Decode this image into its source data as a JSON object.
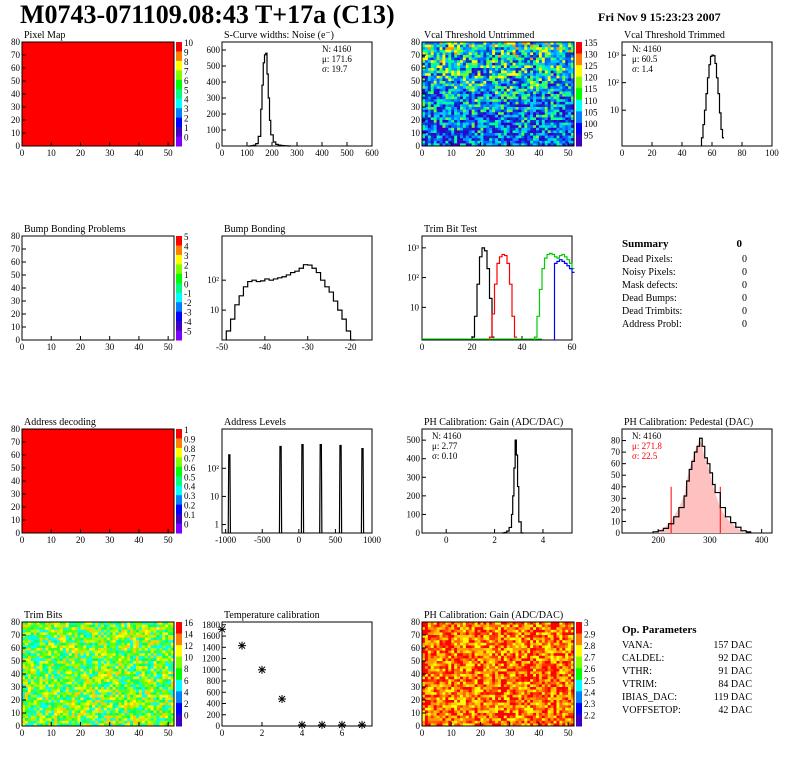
{
  "page": {
    "title": "M0743-071109.08:43 T+17a (C13)",
    "date": "Fri Nov  9 15:23:23 2007"
  },
  "colors": {
    "red_fill": "#ff0000",
    "black": "#000000",
    "green": "#00cc00",
    "blue": "#0000ff",
    "pink": "#ffc0c0"
  },
  "chart_data": [
    {
      "id": "pixel-map",
      "type": "heatmap",
      "title": "Pixel Map",
      "xlim": [
        0,
        52
      ],
      "ylim": [
        0,
        80
      ],
      "xticks": [
        0,
        10,
        20,
        30,
        40,
        50
      ],
      "yticks": [
        0,
        10,
        20,
        30,
        40,
        50,
        60,
        70,
        80
      ],
      "fill": "uniform-max",
      "palette": [
        "10",
        "9",
        "8",
        "7",
        "6",
        "5",
        "4",
        "3",
        "2",
        "1",
        "0"
      ]
    },
    {
      "id": "scurve",
      "type": "line",
      "title": "S-Curve widths: Noise (e⁻)",
      "xlim": [
        0,
        600
      ],
      "ylim": [
        0,
        650
      ],
      "xticks": [
        0,
        100,
        200,
        300,
        400,
        500,
        600
      ],
      "yticks": [
        0,
        100,
        200,
        300,
        400,
        500,
        600
      ],
      "x": [
        105,
        115,
        125,
        135,
        145,
        155,
        160,
        165,
        170,
        175,
        180,
        185,
        190,
        195,
        205,
        215,
        225,
        235,
        245,
        255,
        265
      ],
      "values": [
        0,
        2,
        5,
        15,
        60,
        230,
        380,
        520,
        570,
        580,
        450,
        300,
        160,
        70,
        25,
        10,
        6,
        3,
        2,
        1,
        0
      ],
      "stats": [
        "N: 4160",
        "μ: 171.6",
        "σ: 19.7"
      ]
    },
    {
      "id": "vcal-untrimmed",
      "type": "heatmap",
      "title": "Vcal Threshold Untrimmed",
      "xlim": [
        0,
        52
      ],
      "ylim": [
        0,
        80
      ],
      "xticks": [
        0,
        10,
        20,
        30,
        40,
        50
      ],
      "yticks": [
        0,
        10,
        20,
        30,
        40,
        50,
        60,
        70,
        80
      ],
      "fill": "noisy",
      "palette": [
        "135",
        "130",
        "125",
        "120",
        "115",
        "110",
        "105",
        "100",
        "95"
      ]
    },
    {
      "id": "vcal-trimmed",
      "type": "line",
      "title": "Vcal Threshold Trimmed",
      "scale": "log",
      "xlim": [
        0,
        100
      ],
      "ylim": [
        0.5,
        3000
      ],
      "xticks": [
        0,
        20,
        40,
        60,
        80,
        100
      ],
      "yticks": [
        "10",
        "10²",
        "10³"
      ],
      "x": [
        53,
        54,
        55,
        56,
        57,
        58,
        59,
        60,
        61,
        62,
        63,
        64,
        65,
        66,
        67
      ],
      "values": [
        1,
        3,
        10,
        40,
        150,
        450,
        900,
        1000,
        950,
        500,
        150,
        40,
        8,
        2,
        1
      ],
      "stats": [
        "N: 4160",
        "μ: 60.5",
        "σ: 1.4"
      ]
    },
    {
      "id": "bump-problems",
      "type": "heatmap",
      "title": "Bump Bonding Problems",
      "xlim": [
        0,
        52
      ],
      "ylim": [
        0,
        80
      ],
      "xticks": [
        0,
        10,
        20,
        30,
        40,
        50
      ],
      "yticks": [
        0,
        10,
        20,
        30,
        40,
        50,
        60,
        70,
        80
      ],
      "fill": "empty",
      "palette": [
        "5",
        "4",
        "3",
        "2",
        "1",
        "0",
        "-1",
        "-2",
        "-3",
        "-4",
        "-5"
      ]
    },
    {
      "id": "bump-bonding",
      "type": "line",
      "title": "Bump Bonding",
      "scale": "log",
      "xlim": [
        -50,
        -15
      ],
      "ylim": [
        1,
        3000
      ],
      "xticks": [
        -50,
        -40,
        -30,
        -20
      ],
      "yticks": [
        "10",
        "10²"
      ],
      "x": [
        -49,
        -48,
        -47,
        -46,
        -45,
        -44,
        -43,
        -42,
        -41,
        -40,
        -39,
        -38,
        -37,
        -36,
        -35,
        -34,
        -33,
        -32,
        -31,
        -30,
        -29,
        -28,
        -27,
        -26,
        -25,
        -24,
        -23,
        -22,
        -21,
        -20
      ],
      "values": [
        2,
        5,
        15,
        30,
        60,
        90,
        100,
        90,
        95,
        110,
        100,
        110,
        120,
        130,
        150,
        180,
        200,
        250,
        330,
        320,
        250,
        180,
        100,
        60,
        40,
        20,
        10,
        5,
        2,
        1
      ]
    },
    {
      "id": "trim-bit-test",
      "type": "line",
      "title": "Trim Bit Test",
      "scale": "log",
      "xlim": [
        0,
        60
      ],
      "ylim": [
        0.8,
        2500
      ],
      "xticks": [
        0,
        20,
        40,
        60
      ],
      "yticks": [
        "10",
        "10²",
        "10³"
      ],
      "series": [
        {
          "color": "#000000",
          "x": [
            20,
            21,
            22,
            23,
            24,
            25,
            26,
            27,
            28
          ],
          "values": [
            1,
            5,
            60,
            500,
            1000,
            800,
            200,
            20,
            1
          ]
        },
        {
          "color": "#ff0000",
          "x": [
            27,
            28,
            29,
            30,
            31,
            32,
            33,
            34,
            35,
            36,
            37
          ],
          "values": [
            1,
            6,
            60,
            300,
            500,
            600,
            550,
            300,
            60,
            5,
            1
          ]
        },
        {
          "color": "#00cc00",
          "x": [
            45,
            46,
            47,
            48,
            49,
            50,
            51,
            52,
            53,
            54,
            55,
            56,
            57,
            58,
            59,
            60
          ],
          "values": [
            1,
            5,
            40,
            200,
            450,
            600,
            650,
            600,
            500,
            450,
            550,
            600,
            500,
            400,
            300,
            200
          ]
        },
        {
          "color": "#0000ff",
          "x": [
            53,
            54,
            55,
            56,
            57,
            58,
            59,
            60
          ],
          "values": [
            300,
            350,
            400,
            350,
            300,
            250,
            200,
            150
          ]
        }
      ]
    },
    {
      "id": "address-decoding",
      "type": "heatmap",
      "title": "Address decoding",
      "xlim": [
        0,
        52
      ],
      "ylim": [
        0,
        80
      ],
      "xticks": [
        0,
        10,
        20,
        30,
        40,
        50
      ],
      "yticks": [
        0,
        10,
        20,
        30,
        40,
        50,
        60,
        70,
        80
      ],
      "fill": "uniform-max",
      "palette": [
        "1",
        "0.9",
        "0.8",
        "0.7",
        "0.6",
        "0.5",
        "0.4",
        "0.3",
        "0.2",
        "0.1",
        "0"
      ]
    },
    {
      "id": "address-levels",
      "type": "line",
      "title": "Address Levels",
      "scale": "log",
      "xlim": [
        -1050,
        1000
      ],
      "ylim": [
        0.5,
        2500
      ],
      "xticks": [
        -1000,
        -500,
        0,
        500,
        1000
      ],
      "yticks": [
        "1",
        "10",
        "10²"
      ],
      "peaks": [
        -950,
        -250,
        50,
        300,
        570,
        870
      ],
      "peak_heights": [
        300,
        600,
        700,
        700,
        650,
        500
      ]
    },
    {
      "id": "ph-gain",
      "type": "line",
      "title": "PH Calibration: Gain (ADC/DAC)",
      "xlim": [
        -1,
        5.2
      ],
      "ylim": [
        0,
        560
      ],
      "xticks": [
        0,
        2,
        4
      ],
      "yticks": [
        0,
        100,
        200,
        300,
        400,
        500
      ],
      "x": [
        2.3,
        2.4,
        2.5,
        2.6,
        2.7,
        2.75,
        2.8,
        2.85,
        2.9,
        2.95,
        3.0,
        3.1
      ],
      "values": [
        0,
        3,
        10,
        30,
        100,
        200,
        350,
        500,
        420,
        250,
        60,
        0
      ],
      "stats": [
        "N: 4160",
        "μ: 2.77",
        "σ: 0.10"
      ]
    },
    {
      "id": "ph-pedestal",
      "type": "line",
      "title": "PH Calibration: Pedestal (DAC)",
      "xlim": [
        130,
        420
      ],
      "ylim": [
        0,
        90
      ],
      "xticks": [
        200,
        300,
        400
      ],
      "yticks": [
        0,
        10,
        20,
        30,
        40,
        50,
        60,
        70,
        80
      ],
      "x": [
        190,
        200,
        210,
        220,
        230,
        240,
        250,
        255,
        260,
        265,
        270,
        275,
        280,
        285,
        290,
        295,
        300,
        305,
        310,
        320,
        330,
        340,
        350,
        360,
        370
      ],
      "values": [
        1,
        2,
        4,
        8,
        14,
        22,
        32,
        45,
        55,
        62,
        70,
        75,
        82,
        75,
        65,
        60,
        52,
        42,
        35,
        22,
        14,
        9,
        5,
        2,
        1
      ],
      "stats": [
        "N: 4160",
        "μ: 271.8",
        "σ: 22.5"
      ],
      "markers": [
        225,
        320
      ]
    },
    {
      "id": "trim-bits",
      "type": "heatmap",
      "title": "Trim Bits",
      "xlim": [
        0,
        52
      ],
      "ylim": [
        0,
        80
      ],
      "xticks": [
        0,
        10,
        20,
        30,
        40,
        50
      ],
      "yticks": [
        0,
        10,
        20,
        30,
        40,
        50,
        60,
        70,
        80
      ],
      "fill": "green-noise",
      "palette": [
        "16",
        "14",
        "12",
        "10",
        "8",
        "6",
        "4",
        "2",
        "0"
      ]
    },
    {
      "id": "temp-calib",
      "type": "scatter",
      "title": "Temperature calibration",
      "xlim": [
        0,
        7.5
      ],
      "ylim": [
        0,
        1850
      ],
      "xticks": [
        0,
        2,
        4,
        6
      ],
      "yticks": [
        0,
        200,
        400,
        600,
        800,
        1000,
        1200,
        1400,
        1600,
        1800
      ],
      "x": [
        0,
        1,
        2,
        3,
        4,
        5,
        6,
        7
      ],
      "values": [
        1720,
        1430,
        1000,
        480,
        20,
        20,
        20,
        20
      ]
    },
    {
      "id": "ph-gain-map",
      "type": "heatmap",
      "title": "PH Calibration: Gain (ADC/DAC)",
      "xlim": [
        0,
        52
      ],
      "ylim": [
        0,
        80
      ],
      "xticks": [
        0,
        10,
        20,
        30,
        40,
        50
      ],
      "yticks": [
        0,
        10,
        20,
        30,
        40,
        50,
        60,
        70,
        80
      ],
      "fill": "warm-noise",
      "palette": [
        "3",
        "2.9",
        "2.8",
        "2.7",
        "2.6",
        "2.5",
        "2.4",
        "2.3",
        "2.2"
      ]
    }
  ],
  "summary": {
    "title": "Summary",
    "total": "0",
    "rows": [
      {
        "label": "Dead Pixels:",
        "value": "0"
      },
      {
        "label": "Noisy Pixels:",
        "value": "0"
      },
      {
        "label": "Mask defects:",
        "value": "0"
      },
      {
        "label": "Dead Bumps:",
        "value": "0"
      },
      {
        "label": "Dead Trimbits:",
        "value": "0"
      },
      {
        "label": "Address Probl:",
        "value": "0"
      }
    ]
  },
  "op_params": {
    "title": "Op. Parameters",
    "rows": [
      {
        "label": "VANA:",
        "value": "157 DAC"
      },
      {
        "label": "CALDEL:",
        "value": "92 DAC"
      },
      {
        "label": "VTHR:",
        "value": "91 DAC"
      },
      {
        "label": "VTRIM:",
        "value": "84 DAC"
      },
      {
        "label": "IBIAS_DAC:",
        "value": "119 DAC"
      },
      {
        "label": "VOFFSETOP:",
        "value": "42 DAC"
      }
    ]
  }
}
